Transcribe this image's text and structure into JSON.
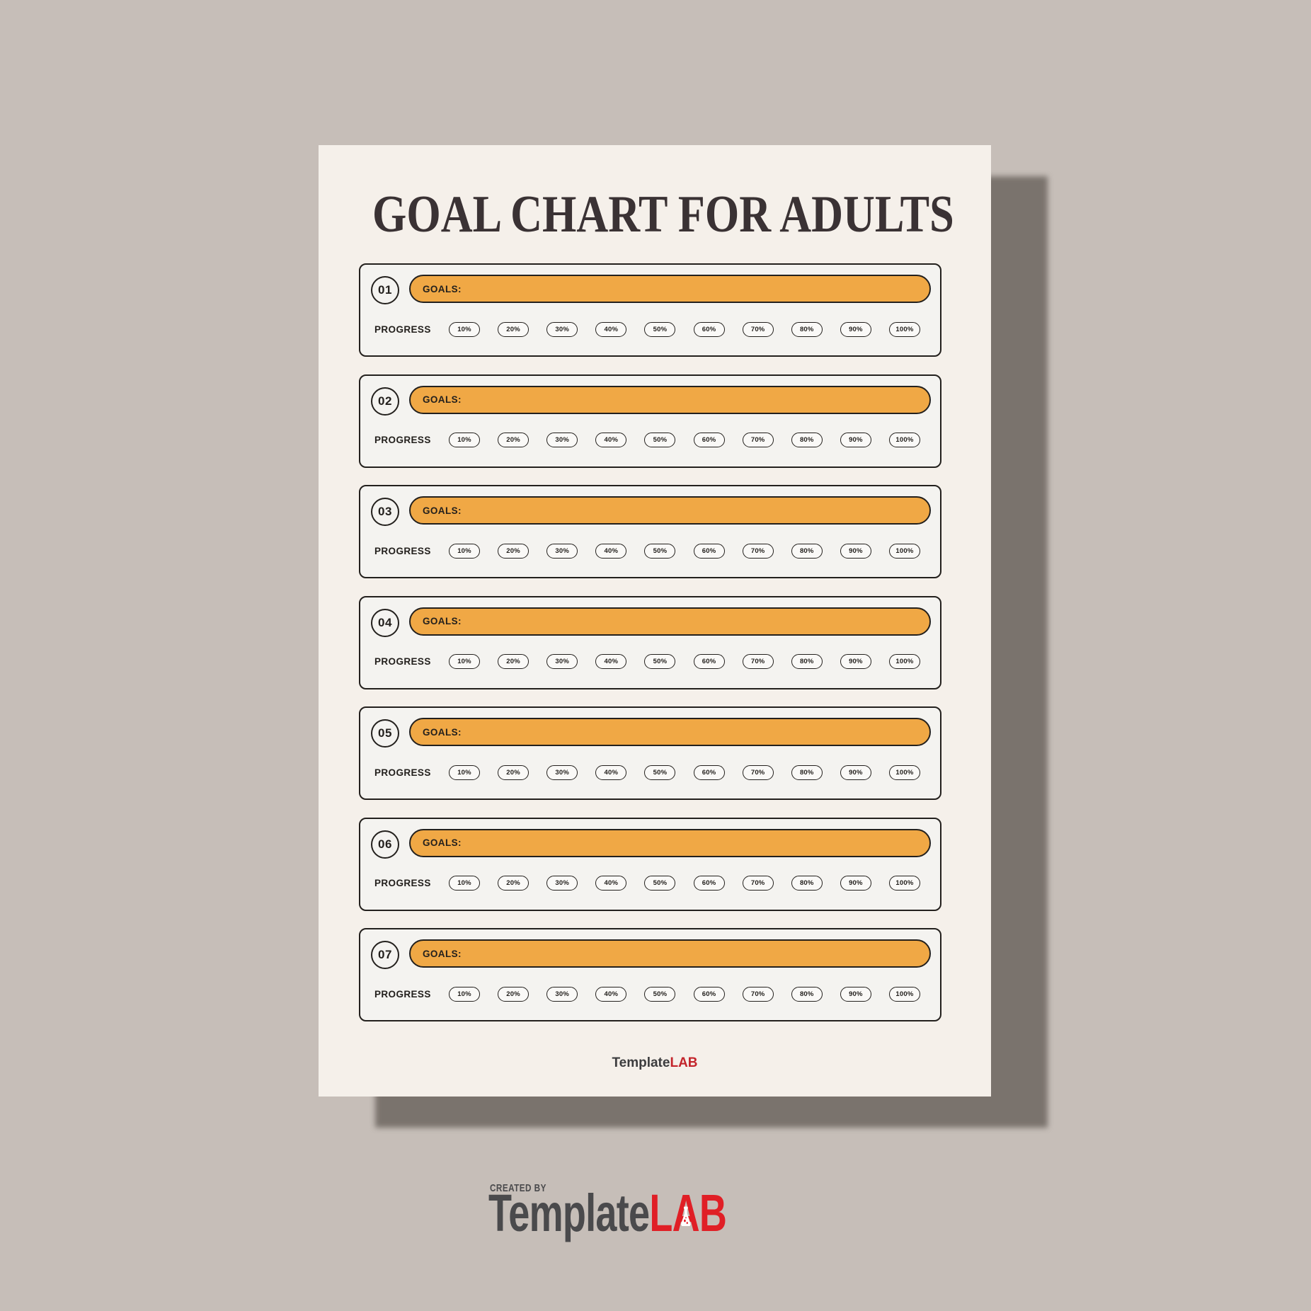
{
  "title": "GOAL CHART FOR ADULTS",
  "colors": {
    "page_background": "#c6beb8",
    "paper": "#f5f0ea",
    "paper_shadow": "#7a736d",
    "card_background": "#f4f3f0",
    "accent_orange": "#f0a845",
    "outline_dark": "#23201d",
    "logo_red": "#e01f26",
    "logo_gray": "#4a4a4c"
  },
  "rows": [
    {
      "number": "01",
      "goals_label": "GOALS:",
      "progress_label": "PROGRESS",
      "percentages": [
        "10%",
        "20%",
        "30%",
        "40%",
        "50%",
        "60%",
        "70%",
        "80%",
        "90%",
        "100%"
      ]
    },
    {
      "number": "02",
      "goals_label": "GOALS:",
      "progress_label": "PROGRESS",
      "percentages": [
        "10%",
        "20%",
        "30%",
        "40%",
        "50%",
        "60%",
        "70%",
        "80%",
        "90%",
        "100%"
      ]
    },
    {
      "number": "03",
      "goals_label": "GOALS:",
      "progress_label": "PROGRESS",
      "percentages": [
        "10%",
        "20%",
        "30%",
        "40%",
        "50%",
        "60%",
        "70%",
        "80%",
        "90%",
        "100%"
      ]
    },
    {
      "number": "04",
      "goals_label": "GOALS:",
      "progress_label": "PROGRESS",
      "percentages": [
        "10%",
        "20%",
        "30%",
        "40%",
        "50%",
        "60%",
        "70%",
        "80%",
        "90%",
        "100%"
      ]
    },
    {
      "number": "05",
      "goals_label": "GOALS:",
      "progress_label": "PROGRESS",
      "percentages": [
        "10%",
        "20%",
        "30%",
        "40%",
        "50%",
        "60%",
        "70%",
        "80%",
        "90%",
        "100%"
      ]
    },
    {
      "number": "06",
      "goals_label": "GOALS:",
      "progress_label": "PROGRESS",
      "percentages": [
        "10%",
        "20%",
        "30%",
        "40%",
        "50%",
        "60%",
        "70%",
        "80%",
        "90%",
        "100%"
      ]
    },
    {
      "number": "07",
      "goals_label": "GOALS:",
      "progress_label": "PROGRESS",
      "percentages": [
        "10%",
        "20%",
        "30%",
        "40%",
        "50%",
        "60%",
        "70%",
        "80%",
        "90%",
        "100%"
      ]
    }
  ],
  "footer": {
    "brand_gray": "Template",
    "brand_red": "LAB"
  },
  "watermark": {
    "created_by": "CREATED BY",
    "brand_gray": "Template",
    "brand_l": "L",
    "brand_a": "A",
    "brand_b": "B"
  }
}
